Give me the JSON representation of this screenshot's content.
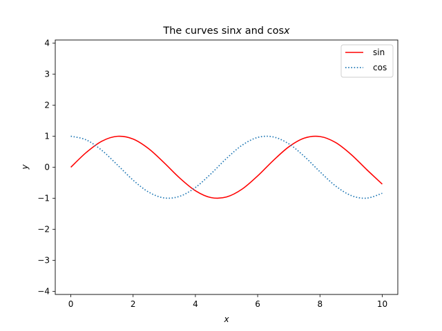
{
  "chart_data": {
    "type": "line",
    "title": "The curves sinx and cosx",
    "title_parts": {
      "prefix": "The curves sin",
      "var1": "x",
      "middle": " and cos",
      "var2": "x"
    },
    "xlabel": "x",
    "ylabel": "y",
    "xlim": [
      -0.5,
      10.5
    ],
    "ylim": [
      -4.1,
      4.1
    ],
    "x_ticks": [
      0,
      2,
      4,
      6,
      8,
      10
    ],
    "x_tick_labels": [
      "0",
      "2",
      "4",
      "6",
      "8",
      "10"
    ],
    "y_ticks": [
      -4,
      -3,
      -2,
      -1,
      0,
      1,
      2,
      3,
      4
    ],
    "y_tick_labels": [
      "−4",
      "−3",
      "−2",
      "−1",
      "0",
      "1",
      "2",
      "3",
      "4"
    ],
    "grid": false,
    "legend_position": "upper-right",
    "x": [
      0,
      0.5,
      1,
      1.5,
      2,
      2.5,
      3,
      3.5,
      4,
      4.5,
      5,
      5.5,
      6,
      6.5,
      7,
      7.5,
      8,
      8.5,
      9,
      9.5,
      10
    ],
    "series": [
      {
        "name": "sin",
        "color": "#ff0000",
        "style": "solid",
        "values": [
          0,
          0.479,
          0.841,
          0.997,
          0.909,
          0.598,
          0.141,
          -0.351,
          -0.757,
          -0.978,
          -0.959,
          -0.706,
          -0.279,
          0.215,
          0.657,
          0.938,
          0.989,
          0.798,
          0.412,
          -0.075,
          -0.544
        ]
      },
      {
        "name": "cos",
        "color": "#1f77b4",
        "style": "dotted",
        "values": [
          1,
          0.878,
          0.54,
          0.071,
          -0.416,
          -0.801,
          -0.99,
          -0.936,
          -0.654,
          -0.211,
          0.284,
          0.709,
          0.96,
          0.977,
          0.754,
          0.347,
          -0.146,
          -0.602,
          -0.911,
          -0.997,
          -0.839
        ]
      }
    ]
  }
}
